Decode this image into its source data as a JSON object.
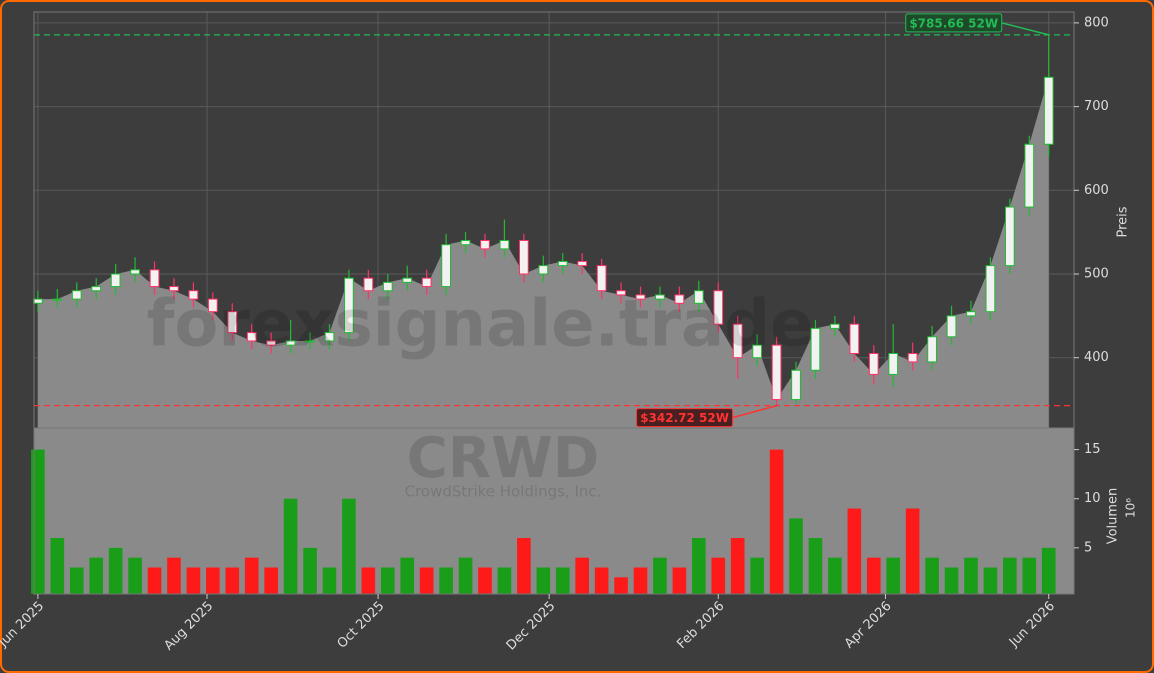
{
  "chart_data": [
    {
      "type": "candlestick",
      "watermarks": [
        "forexsignale.trade",
        "CRWD",
        "CrowdStrike Holdings, Inc."
      ],
      "y_label": "Preis",
      "open": [
        465,
        470,
        470,
        480,
        485,
        500,
        505,
        485,
        480,
        470,
        455,
        430,
        420,
        415,
        420,
        420,
        430,
        495,
        480,
        490,
        495,
        485,
        535,
        540,
        530,
        540,
        500,
        510,
        515,
        510,
        480,
        475,
        470,
        475,
        465,
        480,
        440,
        400,
        415,
        350,
        385,
        435,
        440,
        405,
        380,
        405,
        395,
        425,
        450,
        455,
        510,
        580,
        655
      ],
      "high": [
        480,
        482,
        490,
        495,
        512,
        520,
        515,
        495,
        490,
        478,
        465,
        440,
        430,
        445,
        430,
        440,
        505,
        505,
        500,
        510,
        505,
        548,
        550,
        548,
        565,
        548,
        522,
        525,
        525,
        518,
        490,
        485,
        485,
        485,
        492,
        490,
        450,
        428,
        425,
        395,
        445,
        450,
        450,
        415,
        440,
        418,
        438,
        462,
        468,
        520,
        590,
        665,
        785.66
      ],
      "low": [
        455,
        460,
        460,
        470,
        475,
        490,
        475,
        470,
        460,
        445,
        420,
        410,
        405,
        405,
        410,
        410,
        420,
        470,
        470,
        480,
        475,
        475,
        525,
        520,
        520,
        490,
        490,
        500,
        500,
        470,
        465,
        460,
        460,
        455,
        455,
        430,
        375,
        390,
        342.72,
        345,
        375,
        425,
        395,
        368,
        365,
        385,
        385,
        415,
        440,
        445,
        500,
        570,
        640
      ],
      "close": [
        470,
        470,
        480,
        485,
        500,
        505,
        485,
        480,
        470,
        455,
        430,
        420,
        415,
        420,
        420,
        430,
        495,
        480,
        490,
        495,
        485,
        535,
        540,
        530,
        540,
        500,
        510,
        515,
        510,
        480,
        475,
        470,
        475,
        465,
        480,
        440,
        400,
        415,
        350,
        385,
        435,
        440,
        405,
        380,
        405,
        395,
        425,
        450,
        455,
        510,
        580,
        655,
        735
      ],
      "up_color": "#22bb33",
      "down_color": "#ff3366",
      "area_color": "#8a8a8a",
      "ylim": [
        316,
        813
      ],
      "yticks": [
        400,
        500,
        600,
        700,
        800
      ],
      "xlim": [
        -0.2,
        53.3
      ],
      "xticks": [
        {
          "value": 0,
          "label": "Jun 2025"
        },
        {
          "value": 8.7,
          "label": "Aug 2025"
        },
        {
          "value": 17.5,
          "label": "Oct 2025"
        },
        {
          "value": 26.3,
          "label": "Dec 2025"
        },
        {
          "value": 35,
          "label": "Feb 2026"
        },
        {
          "value": 43.6,
          "label": "Apr 2026"
        },
        {
          "value": 52,
          "label": "Jun 2026"
        }
      ],
      "grid": true,
      "annotations": [
        {
          "value": 785.66,
          "label": "$785.66 52W",
          "color": "#22bb55"
        },
        {
          "value": 342.72,
          "label": "$342.72 52W",
          "color": "#ff3333"
        }
      ]
    },
    {
      "type": "bar",
      "y_label": "Volumen",
      "y_unit": "10⁶",
      "values": [
        15,
        6,
        3,
        4,
        5,
        4,
        3,
        4,
        3,
        3,
        3,
        4,
        3,
        10,
        5,
        3,
        10,
        3,
        3,
        4,
        3,
        3,
        4,
        3,
        3,
        6,
        3,
        3,
        4,
        3,
        2,
        3,
        4,
        3,
        6,
        4,
        6,
        4,
        15,
        8,
        6,
        4,
        9,
        4,
        4,
        9,
        4,
        3,
        4,
        3,
        4,
        4,
        5
      ],
      "up_color": "#1a9e1a",
      "down_color": "#ff1a1a",
      "ylim": [
        0.3,
        17.2
      ],
      "yticks": [
        5,
        10,
        15
      ],
      "grid": true
    }
  ]
}
